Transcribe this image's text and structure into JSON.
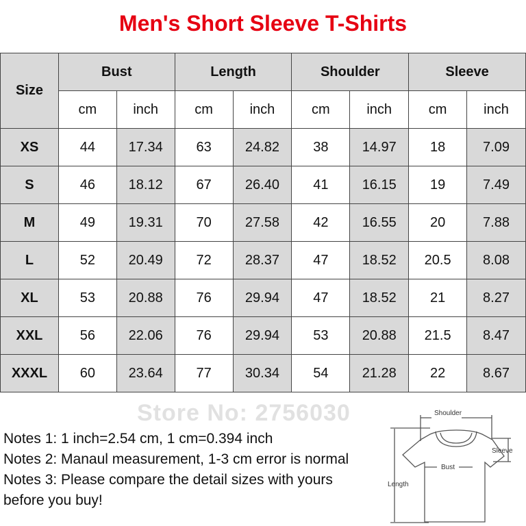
{
  "title": "Men's Short Sleeve T-Shirts",
  "table": {
    "size_header": "Size",
    "groups": [
      "Bust",
      "Length",
      "Shoulder",
      "Sleeve"
    ],
    "units": [
      "cm",
      "inch",
      "cm",
      "inch",
      "cm",
      "inch",
      "cm",
      "inch"
    ],
    "rows": [
      {
        "size": "XS",
        "values": [
          "44",
          "17.34",
          "63",
          "24.82",
          "38",
          "14.97",
          "18",
          "7.09"
        ]
      },
      {
        "size": "S",
        "values": [
          "46",
          "18.12",
          "67",
          "26.40",
          "41",
          "16.15",
          "19",
          "7.49"
        ]
      },
      {
        "size": "M",
        "values": [
          "49",
          "19.31",
          "70",
          "27.58",
          "42",
          "16.55",
          "20",
          "7.88"
        ]
      },
      {
        "size": "L",
        "values": [
          "52",
          "20.49",
          "72",
          "28.37",
          "47",
          "18.52",
          "20.5",
          "8.08"
        ]
      },
      {
        "size": "XL",
        "values": [
          "53",
          "20.88",
          "76",
          "29.94",
          "47",
          "18.52",
          "21",
          "8.27"
        ]
      },
      {
        "size": "XXL",
        "values": [
          "56",
          "22.06",
          "76",
          "29.94",
          "53",
          "20.88",
          "21.5",
          "8.47"
        ]
      },
      {
        "size": "XXXL",
        "values": [
          "60",
          "23.64",
          "77",
          "30.34",
          "54",
          "21.28",
          "22",
          "8.67"
        ]
      }
    ]
  },
  "watermark": "Store No: 2756030",
  "notes": [
    "Notes 1: 1 inch=2.54 cm, 1 cm=0.394 inch",
    "Notes 2: Manaul measurement, 1-3 cm error is normal",
    "Notes 3: Please compare the detail sizes with yours before you buy!"
  ],
  "diagram": {
    "shoulder": "Shoulder",
    "sleeve": "Sleeve",
    "bust": "Bust",
    "length": "Length"
  },
  "colors": {
    "title": "#e60012",
    "cell_shade": "#d9d9d9"
  }
}
